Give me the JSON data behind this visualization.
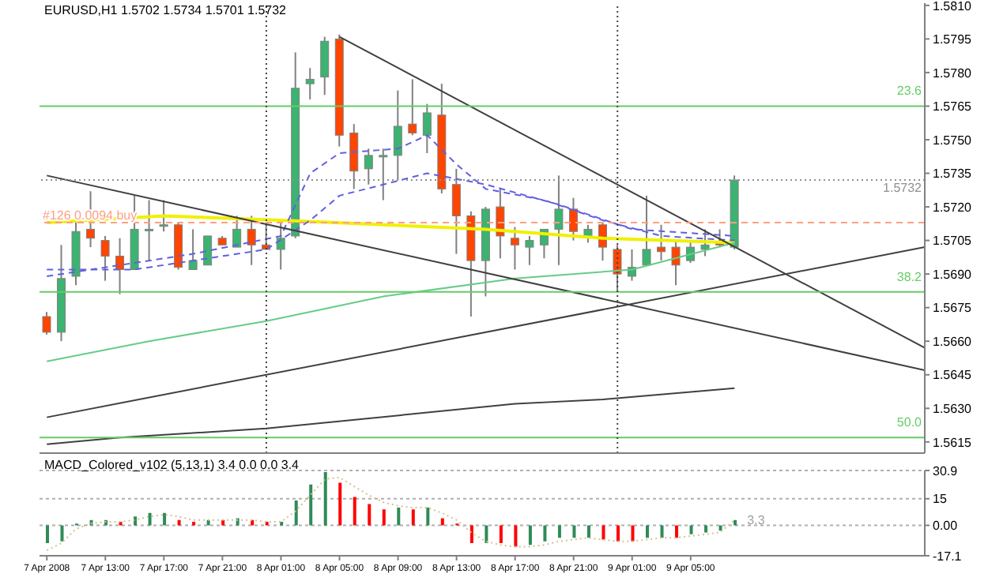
{
  "chart_data": [
    {
      "type": "candlestick",
      "title": "EURUSD,H1  1.5702 1.5734 1.5701 1.5732",
      "x": [
        "2008-04-07T09:00",
        "2008-04-07T10:00",
        "2008-04-07T11:00",
        "2008-04-07T12:00",
        "2008-04-07T13:00",
        "2008-04-07T14:00",
        "2008-04-07T15:00",
        "2008-04-07T16:00",
        "2008-04-07T17:00",
        "2008-04-07T18:00",
        "2008-04-07T19:00",
        "2008-04-07T20:00",
        "2008-04-07T21:00",
        "2008-04-07T22:00",
        "2008-04-07T23:00",
        "2008-04-08T00:00",
        "2008-04-08T01:00",
        "2008-04-08T02:00",
        "2008-04-08T03:00",
        "2008-04-08T04:00",
        "2008-04-08T05:00",
        "2008-04-08T06:00",
        "2008-04-08T07:00",
        "2008-04-08T08:00",
        "2008-04-08T09:00",
        "2008-04-08T10:00",
        "2008-04-08T11:00",
        "2008-04-08T12:00",
        "2008-04-08T13:00",
        "2008-04-08T14:00",
        "2008-04-08T15:00",
        "2008-04-08T16:00",
        "2008-04-08T17:00",
        "2008-04-08T18:00",
        "2008-04-08T19:00",
        "2008-04-08T20:00",
        "2008-04-08T21:00",
        "2008-04-08T22:00",
        "2008-04-08T23:00",
        "2008-04-09T00:00",
        "2008-04-09T01:00",
        "2008-04-09T02:00",
        "2008-04-09T03:00",
        "2008-04-09T04:00",
        "2008-04-09T05:00",
        "2008-04-09T06:00",
        "2008-04-09T07:00",
        "2008-04-09T08:00"
      ],
      "ohlc": [
        [
          1.5671,
          1.5673,
          1.5663,
          1.5664
        ],
        [
          1.5664,
          1.5703,
          1.566,
          1.5688
        ],
        [
          1.5689,
          1.5714,
          1.5685,
          1.5709
        ],
        [
          1.571,
          1.5727,
          1.5702,
          1.5706
        ],
        [
          1.5705,
          1.5707,
          1.5687,
          1.5698
        ],
        [
          1.5698,
          1.5706,
          1.5681,
          1.5692
        ],
        [
          1.5692,
          1.5725,
          1.5692,
          1.571
        ],
        [
          1.571,
          1.5723,
          1.5696,
          1.571
        ],
        [
          1.5712,
          1.5723,
          1.5709,
          1.5712
        ],
        [
          1.5712,
          1.5713,
          1.5692,
          1.5693
        ],
        [
          1.5692,
          1.571,
          1.5692,
          1.5696
        ],
        [
          1.5694,
          1.5707,
          1.5694,
          1.5707
        ],
        [
          1.5706,
          1.5707,
          1.5703,
          1.5703
        ],
        [
          1.5702,
          1.5716,
          1.5702,
          1.571
        ],
        [
          1.571,
          1.5716,
          1.5694,
          1.5703
        ],
        [
          1.5703,
          1.5712,
          1.5701,
          1.5701
        ],
        [
          1.5701,
          1.5714,
          1.5692,
          1.5706
        ],
        [
          1.5707,
          1.5789,
          1.5706,
          1.5773
        ],
        [
          1.5775,
          1.5782,
          1.5768,
          1.5777
        ],
        [
          1.5778,
          1.5796,
          1.577,
          1.5794
        ],
        [
          1.5795,
          1.5797,
          1.5747,
          1.5752
        ],
        [
          1.5753,
          1.5757,
          1.5728,
          1.5736
        ],
        [
          1.5737,
          1.5746,
          1.573,
          1.5743
        ],
        [
          1.5743,
          1.5746,
          1.5723,
          1.5743
        ],
        [
          1.5743,
          1.5772,
          1.5732,
          1.5756
        ],
        [
          1.5757,
          1.5777,
          1.5752,
          1.5753
        ],
        [
          1.5752,
          1.5766,
          1.5744,
          1.5762
        ],
        [
          1.5761,
          1.5775,
          1.5726,
          1.5728
        ],
        [
          1.573,
          1.5737,
          1.5699,
          1.5716
        ],
        [
          1.5716,
          1.5718,
          1.5671,
          1.5696
        ],
        [
          1.5696,
          1.572,
          1.568,
          1.5719
        ],
        [
          1.572,
          1.5728,
          1.5697,
          1.5707
        ],
        [
          1.5706,
          1.5711,
          1.5692,
          1.5703
        ],
        [
          1.5702,
          1.5707,
          1.5694,
          1.5705
        ],
        [
          1.5703,
          1.571,
          1.5697,
          1.571
        ],
        [
          1.571,
          1.5734,
          1.5694,
          1.5719
        ],
        [
          1.5719,
          1.5724,
          1.5705,
          1.5709
        ],
        [
          1.5707,
          1.5712,
          1.5704,
          1.571
        ],
        [
          1.5712,
          1.5713,
          1.5696,
          1.5702
        ],
        [
          1.5701,
          1.5703,
          1.5682,
          1.569
        ],
        [
          1.5689,
          1.5701,
          1.5687,
          1.5693
        ],
        [
          1.5694,
          1.5725,
          1.5694,
          1.5701
        ],
        [
          1.5702,
          1.5712,
          1.5696,
          1.57
        ],
        [
          1.5702,
          1.5705,
          1.5685,
          1.5694
        ],
        [
          1.5696,
          1.5705,
          1.5695,
          1.5702
        ],
        [
          1.5701,
          1.571,
          1.5698,
          1.5703
        ],
        [
          1.5704,
          1.571,
          1.5702,
          1.5703
        ],
        [
          1.5702,
          1.5734,
          1.5701,
          1.5732
        ]
      ],
      "colors": [
        "#ff4500",
        "#3cb371",
        "#3cb371",
        "#ff4500",
        "#ff4500",
        "#ff4500",
        "#3cb371",
        "#3cb371",
        "#3cb371",
        "#ff4500",
        "#3cb371",
        "#3cb371",
        "#ff4500",
        "#3cb371",
        "#ff4500",
        "#ff4500",
        "#3cb371",
        "#3cb371",
        "#3cb371",
        "#3cb371",
        "#ff4500",
        "#ff4500",
        "#3cb371",
        "#3cb371",
        "#3cb371",
        "#ff4500",
        "#3cb371",
        "#ff4500",
        "#ff4500",
        "#ff4500",
        "#3cb371",
        "#ff4500",
        "#ff4500",
        "#3cb371",
        "#3cb371",
        "#3cb371",
        "#ff4500",
        "#3cb371",
        "#ff4500",
        "#ff4500",
        "#3cb371",
        "#3cb371",
        "#ff4500",
        "#ff4500",
        "#3cb371",
        "#3cb371",
        "#ff4500",
        "#3cb371"
      ],
      "series": [
        {
          "type": "line",
          "color": "#f0f000",
          "x": [
            "2008-04-07T09:00",
            "2008-04-07T17:00",
            "2008-04-08T01:00",
            "2008-04-08T15:00",
            "2008-04-08T23:00",
            "2008-04-09T08:00"
          ],
          "values": [
            1.5713,
            1.5716,
            1.5714,
            1.571,
            1.5706,
            1.5704
          ]
        },
        {
          "type": "line",
          "color": "#66cc88",
          "x": [
            "2008-04-07T09:00",
            "2008-04-07T16:00",
            "2008-04-08T00:00",
            "2008-04-08T08:00",
            "2008-04-08T17:00",
            "2008-04-09T01:00",
            "2008-04-09T08:00"
          ],
          "values": [
            1.5651,
            1.566,
            1.5669,
            1.568,
            1.5688,
            1.5692,
            1.5704
          ]
        },
        {
          "type": "line",
          "color": "#404040",
          "x": [
            "2008-04-07T09:00",
            "2008-04-07T14:00",
            "2008-04-08T00:00",
            "2008-04-08T17:00",
            "2008-04-08T23:00",
            "2008-04-09T08:00"
          ],
          "values": [
            1.5614,
            1.5617,
            1.5621,
            1.5632,
            1.5634,
            1.5639
          ]
        },
        {
          "type": "line",
          "color": "#6060e0",
          "line_style": "dashed",
          "x": [
            "2008-04-07T09:00",
            "2008-04-07T13:00",
            "2008-04-07T19:00",
            "2008-04-08T01:00",
            "2008-04-08T03:00",
            "2008-04-08T05:00",
            "2008-04-08T09:00",
            "2008-04-08T11:00",
            "2008-04-08T13:00",
            "2008-04-08T15:00",
            "2008-04-08T19:00",
            "2008-04-08T23:00",
            "2008-04-09T03:00",
            "2008-04-09T08:00"
          ],
          "values": [
            1.5689,
            1.5693,
            1.5699,
            1.5707,
            1.5735,
            1.5744,
            1.5746,
            1.5752,
            1.5739,
            1.5728,
            1.5723,
            1.5714,
            1.5707,
            1.5705
          ]
        },
        {
          "type": "line",
          "color": "#6060e0",
          "line_style": "dashed",
          "x": [
            "2008-04-07T09:00",
            "2008-04-07T15:00",
            "2008-04-08T00:00",
            "2008-04-08T03:00",
            "2008-04-08T05:00",
            "2008-04-08T11:00",
            "2008-04-08T15:00",
            "2008-04-08T20:00",
            "2008-04-09T01:00",
            "2008-04-09T08:00"
          ],
          "values": [
            1.5692,
            1.5692,
            1.5701,
            1.5714,
            1.5725,
            1.5735,
            1.573,
            1.5721,
            1.571,
            1.5707
          ]
        },
        {
          "type": "line",
          "color": "#404040",
          "x": [
            "2008-04-08T05:00",
            "2008-04-09T21:00"
          ],
          "values": [
            1.5796,
            1.5657
          ]
        },
        {
          "type": "line",
          "color": "#404040",
          "x": [
            "2008-04-07T09:00",
            "2008-04-09T21:00"
          ],
          "values": [
            1.5734,
            1.5647
          ]
        },
        {
          "type": "line",
          "color": "#404040",
          "x": [
            "2008-04-07T09:00",
            "2008-04-09T21:00"
          ],
          "values": [
            1.5626,
            1.5702
          ]
        }
      ],
      "xlim": [
        "2008-04-07T08:30",
        "2008-04-09T21:00"
      ],
      "ylim": [
        1.561,
        1.5811
      ],
      "yticks": [
        {
          "value": 1.581,
          "label": "1.5810"
        },
        1.5795,
        {
          "value": 1.578,
          "label": "1.5780"
        },
        1.5765,
        {
          "value": 1.575,
          "label": "1.5750"
        },
        1.5735,
        {
          "value": 1.572,
          "label": "1.5720"
        },
        1.5705,
        {
          "value": 1.569,
          "label": "1.5690"
        },
        1.5675,
        {
          "value": 1.566,
          "label": "1.5660"
        },
        1.5645,
        {
          "value": 1.563,
          "label": "1.5630"
        },
        1.5615
      ],
      "ref_lines": [
        {
          "axis": "y",
          "value": 1.5765,
          "color": "#66cc66"
        },
        {
          "axis": "y",
          "value": 1.5682,
          "color": "#66cc66"
        },
        {
          "axis": "y",
          "value": 1.5617,
          "color": "#66cc66"
        },
        {
          "axis": "y",
          "value": 1.5732,
          "label": "1.5732",
          "color": "#909090",
          "line_style": "dotted"
        },
        {
          "axis": "y",
          "value": 1.5713,
          "label": "#126 0.0094 buy",
          "color": "#ff9f80",
          "line_style": "dashed"
        },
        {
          "axis": "x",
          "value": "2008-04-08T00:00",
          "color": "#404040",
          "line_style": "dotted"
        },
        {
          "axis": "x",
          "value": "2008-04-09T00:00",
          "color": "#404040",
          "line_style": "dotted"
        }
      ],
      "annotations": [
        {
          "text": "23.6",
          "x": "2008-04-09T21:00",
          "y": 1.5765
        },
        {
          "text": "38.2",
          "x": "2008-04-09T21:00",
          "y": 1.5682
        },
        {
          "text": "50.0",
          "x": "2008-04-09T21:00",
          "y": 1.5617
        }
      ],
      "tick_labels": "y",
      "legend": false,
      "grid": false
    },
    {
      "type": "bar",
      "title": "MACD_Colored_v102 (5,13,1) 3.4 0.0 0.0 3.4",
      "x": [
        "2008-04-07T09:00",
        "2008-04-07T10:00",
        "2008-04-07T11:00",
        "2008-04-07T12:00",
        "2008-04-07T13:00",
        "2008-04-07T14:00",
        "2008-04-07T15:00",
        "2008-04-07T16:00",
        "2008-04-07T17:00",
        "2008-04-07T18:00",
        "2008-04-07T19:00",
        "2008-04-07T20:00",
        "2008-04-07T21:00",
        "2008-04-07T22:00",
        "2008-04-07T23:00",
        "2008-04-08T00:00",
        "2008-04-08T01:00",
        "2008-04-08T02:00",
        "2008-04-08T03:00",
        "2008-04-08T04:00",
        "2008-04-08T05:00",
        "2008-04-08T06:00",
        "2008-04-08T07:00",
        "2008-04-08T08:00",
        "2008-04-08T09:00",
        "2008-04-08T10:00",
        "2008-04-08T11:00",
        "2008-04-08T12:00",
        "2008-04-08T13:00",
        "2008-04-08T14:00",
        "2008-04-08T15:00",
        "2008-04-08T16:00",
        "2008-04-08T17:00",
        "2008-04-08T18:00",
        "2008-04-08T19:00",
        "2008-04-08T20:00",
        "2008-04-08T21:00",
        "2008-04-08T22:00",
        "2008-04-08T23:00",
        "2008-04-09T00:00",
        "2008-04-09T01:00",
        "2008-04-09T02:00",
        "2008-04-09T03:00",
        "2008-04-09T04:00",
        "2008-04-09T05:00",
        "2008-04-09T06:00",
        "2008-04-09T07:00",
        "2008-04-09T08:00"
      ],
      "series": [
        {
          "type": "bar",
          "values": [
            -10,
            -9,
            1,
            3,
            3,
            2,
            5,
            7,
            7,
            3,
            2,
            3,
            3,
            4,
            3,
            2,
            2,
            14,
            23,
            30,
            24,
            16,
            12,
            9,
            10,
            9,
            10,
            4,
            1,
            -10,
            -10,
            -10,
            -12,
            -11,
            -9,
            -7,
            -7,
            -7,
            -8,
            -9,
            -9,
            -7,
            -7,
            -7,
            -5,
            -4,
            -3,
            3
          ],
          "colors": [
            "#2e8b57",
            "#2e8b57",
            "#2e8b57",
            "#2e8b57",
            "#2e8b57",
            "#ff0000",
            "#2e8b57",
            "#2e8b57",
            "#2e8b57",
            "#ff0000",
            "#ff0000",
            "#2e8b57",
            "#ff0000",
            "#2e8b57",
            "#ff0000",
            "#ff0000",
            "#2e8b57",
            "#2e8b57",
            "#2e8b57",
            "#2e8b57",
            "#ff0000",
            "#ff0000",
            "#ff0000",
            "#ff0000",
            "#2e8b57",
            "#ff0000",
            "#2e8b57",
            "#ff0000",
            "#ff0000",
            "#ff0000",
            "#2e8b57",
            "#ff0000",
            "#ff0000",
            "#2e8b57",
            "#2e8b57",
            "#2e8b57",
            "#2e8b57",
            "#2e8b57",
            "#ff0000",
            "#ff0000",
            "#ff0000",
            "#2e8b57",
            "#2e8b57",
            "#ff0000",
            "#2e8b57",
            "#2e8b57",
            "#2e8b57",
            "#2e8b57"
          ]
        },
        {
          "type": "line",
          "color": "#d8c090",
          "line_style": "dotted",
          "values": [
            -14,
            -10,
            -2,
            1,
            2,
            2,
            3,
            5,
            6,
            5,
            3,
            3,
            3,
            3,
            3,
            2,
            2,
            8,
            17,
            26,
            27,
            22,
            17,
            13,
            11,
            10,
            10,
            7,
            3,
            -4,
            -9,
            -11,
            -12,
            -12,
            -11,
            -9,
            -8,
            -7,
            -8,
            -9,
            -9,
            -8,
            -7,
            -7,
            -6,
            -5,
            -4,
            3
          ]
        }
      ],
      "annotations": [
        {
          "text": "3.3",
          "x": "2008-04-09T08:00",
          "y": 3
        }
      ],
      "xlim": [
        "2008-04-07T08:30",
        "2008-04-09T21:00"
      ],
      "xticks": [
        {
          "value": "2008-04-07T09:00",
          "label": "7 Apr 2008"
        },
        {
          "value": "2008-04-07T13:00",
          "label": "7 Apr 13:00"
        },
        {
          "value": "2008-04-07T17:00",
          "label": "7 Apr 17:00"
        },
        {
          "value": "2008-04-07T21:00",
          "label": "7 Apr 21:00"
        },
        {
          "value": "2008-04-08T01:00",
          "label": "8 Apr 01:00"
        },
        {
          "value": "2008-04-08T05:00",
          "label": "8 Apr 05:00"
        },
        {
          "value": "2008-04-08T09:00",
          "label": "8 Apr 09:00"
        },
        {
          "value": "2008-04-08T13:00",
          "label": "8 Apr 13:00"
        },
        {
          "value": "2008-04-08T17:00",
          "label": "8 Apr 17:00"
        },
        {
          "value": "2008-04-08T21:00",
          "label": "8 Apr 21:00"
        },
        {
          "value": "2008-04-09T01:00",
          "label": "9 Apr 01:00"
        },
        {
          "value": "2008-04-09T05:00",
          "label": "9 Apr 05:00"
        }
      ],
      "ylim": [
        -17.1,
        30.9
      ],
      "yticks": [
        30.9,
        15,
        {
          "value": 0,
          "label": "0.00"
        },
        -17.1
      ],
      "legend": false,
      "grid": "y"
    }
  ]
}
